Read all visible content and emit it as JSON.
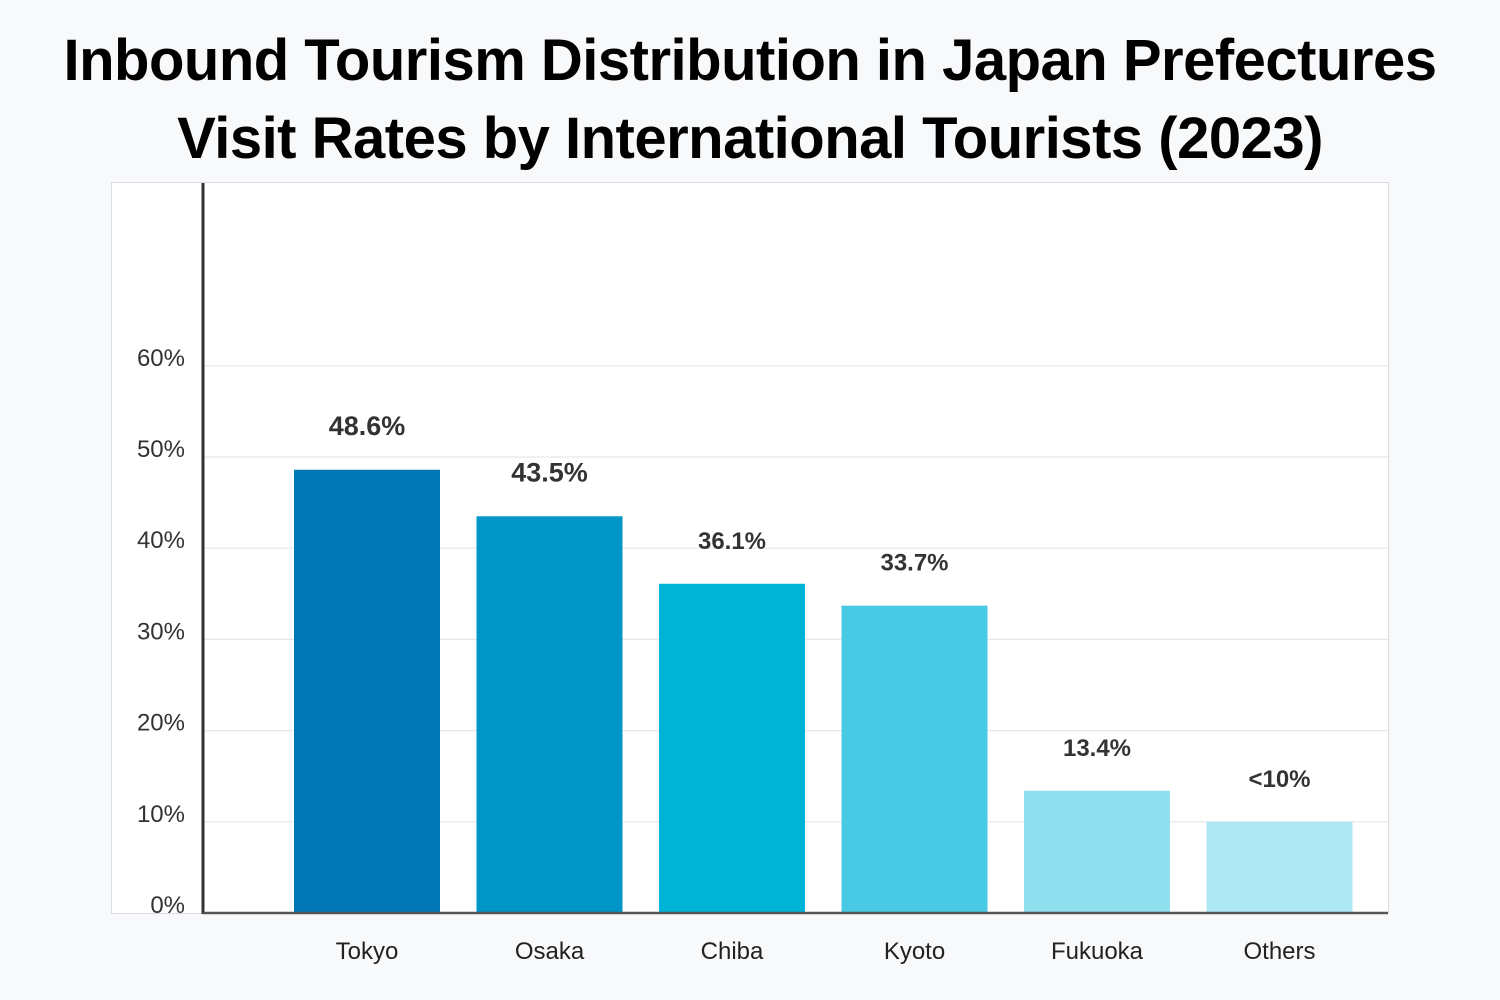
{
  "title": {
    "line1": "Inbound Tourism Distribution in Japan Prefectures",
    "line2": "Visit Rates by International Tourists (2023)"
  },
  "chart_data": {
    "type": "bar",
    "title": "Inbound Tourism Distribution in Japan Prefectures Visit Rates by International Tourists (2023)",
    "xlabel": "",
    "ylabel": "",
    "categories": [
      "Tokyo",
      "Osaka",
      "Chiba",
      "Kyoto",
      "Fukuoka",
      "Others"
    ],
    "values": [
      48.6,
      43.5,
      36.1,
      33.7,
      13.4,
      10
    ],
    "data_labels": [
      "48.6%",
      "43.5%",
      "36.1%",
      "33.7%",
      "13.4%",
      "<10%"
    ],
    "colors": [
      "#0077b6",
      "#0096c7",
      "#00b4d8",
      "#48cae4",
      "#90e0ef",
      "#ade8f4"
    ],
    "ylim": [
      0,
      60
    ],
    "yticks": [
      0,
      10,
      20,
      30,
      40,
      50,
      60
    ],
    "ytick_labels": [
      "0%",
      "10%",
      "20%",
      "30%",
      "40%",
      "50%",
      "60%"
    ],
    "grid": true,
    "legend": "none"
  }
}
